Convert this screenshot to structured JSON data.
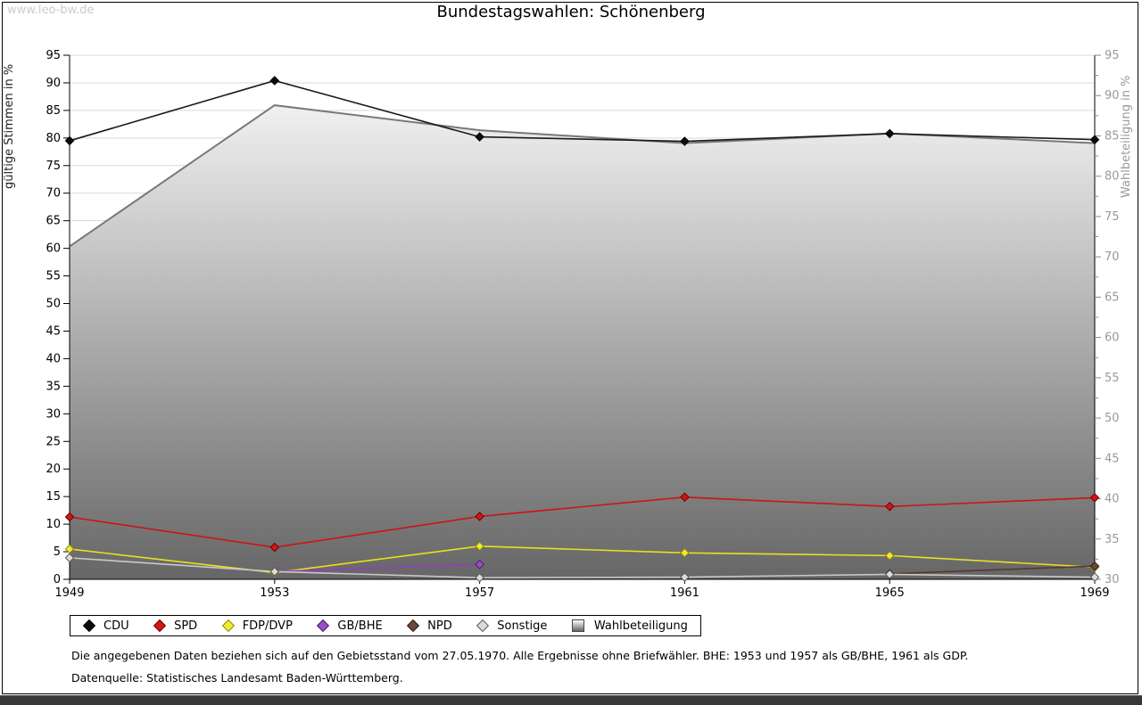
{
  "watermark": "www.leo-bw.de",
  "title": "Bundestagswahlen: Schönenberg",
  "chart_data": {
    "type": "line",
    "title": "Bundestagswahlen: Schönenberg",
    "x": [
      1949,
      1953,
      1957,
      1961,
      1965,
      1969
    ],
    "left_axis": {
      "label": "gültige Stimmen in %",
      "min": 0,
      "max": 95,
      "tick_step": 5
    },
    "right_axis": {
      "label": "Wahlbeteiligung in %",
      "min": 30,
      "max": 95,
      "tick_step": 5,
      "minor_step": 2.5
    },
    "grid": true,
    "legend_position": "bottom",
    "series": [
      {
        "name": "Wahlbeteiligung",
        "axis": "right",
        "style": "area",
        "line_color": "#787878",
        "area_gradient": [
          "#ffffff",
          "#666666"
        ],
        "values": [
          [
            1949,
            71.3
          ],
          [
            1953,
            88.8
          ],
          [
            1957,
            85.7
          ],
          [
            1961,
            84.1
          ],
          [
            1965,
            85.3
          ],
          [
            1969,
            84.1
          ]
        ]
      },
      {
        "name": "CDU",
        "axis": "left",
        "style": "line",
        "line_color": "#1a1a1a",
        "marker_fill": "#0d0d0d",
        "marker_stroke": "#000000",
        "values": [
          [
            1949,
            79.5
          ],
          [
            1953,
            90.4
          ],
          [
            1957,
            80.2
          ],
          [
            1961,
            79.4
          ],
          [
            1965,
            80.8
          ],
          [
            1969,
            79.7
          ]
        ]
      },
      {
        "name": "SPD",
        "axis": "left",
        "style": "line",
        "line_color": "#cc1414",
        "marker_fill": "#d01616",
        "marker_stroke": "#6e0000",
        "values": [
          [
            1949,
            11.3
          ],
          [
            1953,
            5.8
          ],
          [
            1957,
            11.4
          ],
          [
            1961,
            14.9
          ],
          [
            1965,
            13.2
          ],
          [
            1969,
            14.8
          ]
        ]
      },
      {
        "name": "FDP/DVP",
        "axis": "left",
        "style": "line",
        "line_color": "#e8e01e",
        "marker_fill": "#f2ea30",
        "marker_stroke": "#8a8a17",
        "values": [
          [
            1949,
            5.5
          ],
          [
            1953,
            1.2
          ],
          [
            1957,
            6.0
          ],
          [
            1961,
            4.8
          ],
          [
            1965,
            4.3
          ],
          [
            1969,
            2.2
          ]
        ]
      },
      {
        "name": "GB/BHE",
        "axis": "left",
        "style": "line",
        "line_color": "#9040c0",
        "marker_fill": "#9a4ecb",
        "marker_stroke": "#45206e",
        "values": [
          [
            1953,
            1.4
          ],
          [
            1957,
            2.7
          ]
        ]
      },
      {
        "name": "NPD",
        "axis": "left",
        "style": "line",
        "line_color": "#553a2c",
        "marker_fill": "#6b4a38",
        "marker_stroke": "#2e1d14",
        "values": [
          [
            1965,
            1.0
          ],
          [
            1969,
            2.4
          ]
        ]
      },
      {
        "name": "Sonstige",
        "axis": "left",
        "style": "line",
        "line_color": "#c9c9c9",
        "marker_fill": "#dcdcdc",
        "marker_stroke": "#5a5a5a",
        "values": [
          [
            1949,
            3.9
          ],
          [
            1953,
            1.4
          ],
          [
            1957,
            0.3
          ],
          [
            1961,
            0.4
          ],
          [
            1965,
            0.9
          ],
          [
            1969,
            0.4
          ]
        ]
      }
    ]
  },
  "legend": {
    "items": [
      {
        "label": "CDU",
        "marker": "diamond",
        "fill": "#0d0d0d",
        "stroke": "#000000"
      },
      {
        "label": "SPD",
        "marker": "diamond",
        "fill": "#d01616",
        "stroke": "#6e0000"
      },
      {
        "label": "FDP/DVP",
        "marker": "diamond",
        "fill": "#f2ea30",
        "stroke": "#8a8a17"
      },
      {
        "label": "GB/BHE",
        "marker": "diamond",
        "fill": "#9a4ecb",
        "stroke": "#45206e"
      },
      {
        "label": "NPD",
        "marker": "diamond",
        "fill": "#6b4a38",
        "stroke": "#2e1d14"
      },
      {
        "label": "Sonstige",
        "marker": "diamond",
        "fill": "#dcdcdc",
        "stroke": "#5a5a5a"
      },
      {
        "label": "Wahlbeteiligung",
        "marker": "square",
        "gradient": [
          "#ffffff",
          "#666666"
        ],
        "stroke": "#444444"
      }
    ]
  },
  "footnotes": {
    "line1": "Die angegebenen Daten beziehen sich auf den Gebietsstand vom 27.05.1970. Alle Ergebnisse ohne Briefwähler. BHE: 1953 und 1957 als GB/BHE, 1961 als GDP.",
    "line2": "Datenquelle: Statistisches Landesamt Baden-Württemberg."
  },
  "colors": {
    "grid": "#d9d9d9",
    "axis_frame": "#000000",
    "right_axis_text": "#999999",
    "left_axis_text": "#000000",
    "watermark": "#cccccc"
  }
}
